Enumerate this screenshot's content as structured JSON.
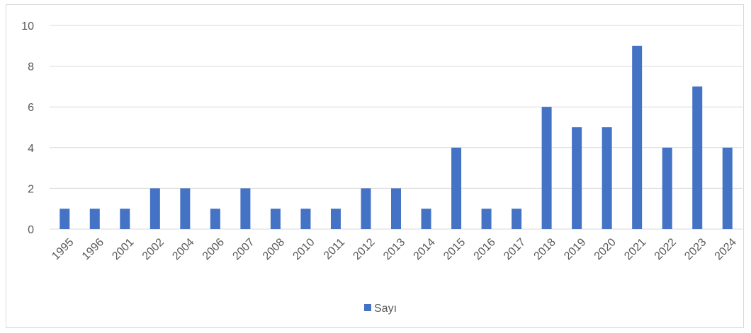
{
  "chart_data": {
    "type": "bar",
    "categories": [
      "1995",
      "1996",
      "2001",
      "2002",
      "2004",
      "2006",
      "2007",
      "2008",
      "2010",
      "2011",
      "2012",
      "2013",
      "2014",
      "2015",
      "2016",
      "2017",
      "2018",
      "2019",
      "2020",
      "2021",
      "2022",
      "2023",
      "2024"
    ],
    "series": [
      {
        "name": "Sayı",
        "color": "#4472c4",
        "values": [
          1,
          1,
          1,
          2,
          2,
          1,
          2,
          1,
          1,
          1,
          2,
          2,
          1,
          4,
          1,
          1,
          6,
          5,
          5,
          9,
          4,
          7,
          4
        ]
      }
    ],
    "yticks": [
      0,
      2,
      4,
      6,
      8,
      10
    ],
    "ylim": [
      0,
      10
    ],
    "grid": true,
    "legend_position": "bottom"
  }
}
